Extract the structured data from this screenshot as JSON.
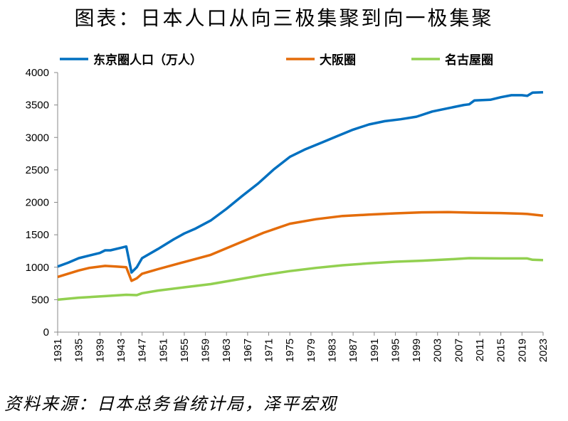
{
  "title": "图表：日本人口从向三极集聚到向一极集聚",
  "source": "资料来源：日本总务省统计局，泽平宏观",
  "chart_data": {
    "type": "line",
    "title": "图表：日本人口从向三极集聚到向一极集聚",
    "xlabel": "",
    "ylabel": "",
    "xlim": [
      1931,
      2023
    ],
    "ylim": [
      0,
      4000
    ],
    "yticks": [
      0,
      500,
      1000,
      1500,
      2000,
      2500,
      3000,
      3500,
      4000
    ],
    "xticks": [
      1931,
      1935,
      1939,
      1943,
      1947,
      1951,
      1955,
      1959,
      1963,
      1967,
      1971,
      1975,
      1979,
      1983,
      1987,
      1991,
      1995,
      1999,
      2003,
      2007,
      2011,
      2015,
      2019,
      2023
    ],
    "grid": false,
    "legend": "top",
    "series": [
      {
        "name": "东京圈人口（万人）",
        "color": "#0070C0",
        "x": [
          1931,
          1933,
          1935,
          1937,
          1939,
          1940,
          1941,
          1943,
          1944,
          1945,
          1946,
          1947,
          1950,
          1953,
          1955,
          1957,
          1960,
          1963,
          1966,
          1969,
          1972,
          1975,
          1978,
          1981,
          1984,
          1987,
          1990,
          1993,
          1996,
          1999,
          2002,
          2005,
          2008,
          2009,
          2010,
          2013,
          2015,
          2017,
          2019,
          2020,
          2021,
          2023
        ],
        "y": [
          1010,
          1070,
          1140,
          1180,
          1220,
          1260,
          1260,
          1300,
          1320,
          920,
          1000,
          1140,
          1280,
          1430,
          1520,
          1590,
          1720,
          1900,
          2100,
          2290,
          2510,
          2700,
          2820,
          2920,
          3020,
          3120,
          3200,
          3250,
          3280,
          3320,
          3400,
          3450,
          3500,
          3510,
          3570,
          3580,
          3620,
          3650,
          3650,
          3640,
          3690,
          3695
        ]
      },
      {
        "name": "大阪圈",
        "color": "#E46C0A",
        "x": [
          1931,
          1935,
          1937,
          1940,
          1942,
          1944,
          1945,
          1946,
          1947,
          1950,
          1955,
          1960,
          1965,
          1970,
          1975,
          1980,
          1985,
          1990,
          1995,
          2000,
          2005,
          2010,
          2015,
          2019,
          2020,
          2023
        ],
        "y": [
          850,
          950,
          990,
          1020,
          1010,
          1000,
          790,
          830,
          900,
          970,
          1080,
          1190,
          1360,
          1530,
          1670,
          1740,
          1790,
          1810,
          1830,
          1845,
          1850,
          1840,
          1835,
          1825,
          1820,
          1795
        ]
      },
      {
        "name": "名古屋圈",
        "color": "#92D050",
        "x": [
          1931,
          1935,
          1940,
          1944,
          1946,
          1947,
          1950,
          1955,
          1960,
          1965,
          1970,
          1975,
          1980,
          1985,
          1990,
          1995,
          2000,
          2005,
          2009,
          2015,
          2020,
          2021,
          2023
        ],
        "y": [
          500,
          530,
          555,
          575,
          570,
          600,
          640,
          690,
          740,
          810,
          880,
          940,
          990,
          1030,
          1060,
          1085,
          1100,
          1120,
          1140,
          1135,
          1135,
          1115,
          1110
        ]
      }
    ]
  }
}
